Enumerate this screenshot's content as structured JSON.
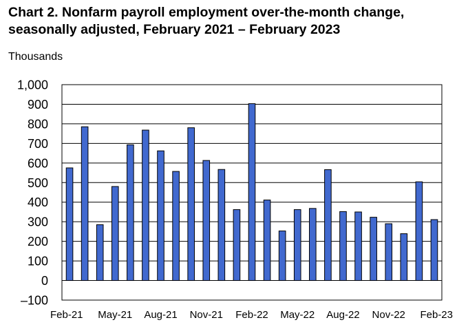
{
  "chart_data": {
    "type": "bar",
    "title_lines": [
      "Chart 2. Nonfarm payroll employment over-the-month change,",
      "seasonally adjusted, February 2021 – February 2023"
    ],
    "ylabel": "Thousands",
    "xlabel": "",
    "ylim": [
      -100,
      1000
    ],
    "yticks": [
      "1,000",
      "900",
      "800",
      "700",
      "600",
      "500",
      "400",
      "300",
      "200",
      "100",
      "0",
      "–100"
    ],
    "grid": true,
    "legend": "none",
    "categories": [
      "Feb-21",
      "Mar-21",
      "Apr-21",
      "May-21",
      "Jun-21",
      "Jul-21",
      "Aug-21",
      "Sep-21",
      "Oct-21",
      "Nov-21",
      "Dec-21",
      "Jan-22",
      "Feb-22",
      "Mar-22",
      "Apr-22",
      "May-22",
      "Jun-22",
      "Jul-22",
      "Aug-22",
      "Sep-22",
      "Oct-22",
      "Nov-22",
      "Dec-22",
      "Jan-23",
      "Feb-23"
    ],
    "xtick_labels": [
      "Feb-21",
      "May-21",
      "Aug-21",
      "Nov-21",
      "Feb-22",
      "May-22",
      "Aug-22",
      "Nov-22",
      "Feb-23"
    ],
    "values": [
      575,
      785,
      285,
      480,
      693,
      768,
      662,
      557,
      780,
      613,
      567,
      362,
      903,
      411,
      253,
      362,
      368,
      566,
      352,
      350,
      323,
      290,
      239,
      504,
      311
    ],
    "colors": {
      "bar_fill": "#4169cf",
      "bar_stroke": "#000000",
      "grid": "#000000"
    }
  }
}
